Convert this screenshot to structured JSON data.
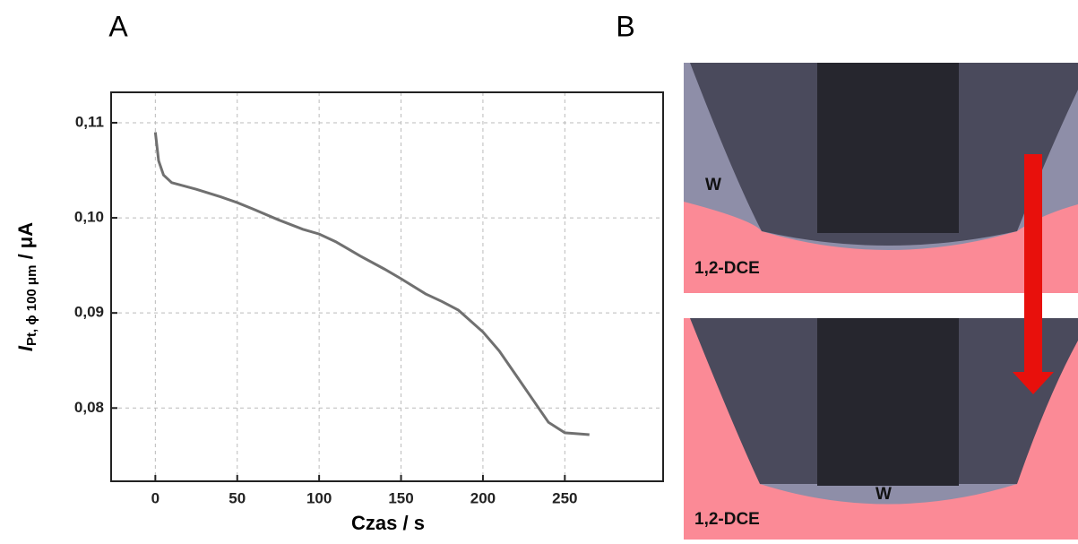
{
  "panels": [
    "A",
    "B"
  ],
  "chart_data": {
    "type": "line",
    "xlabel": "Czas / s",
    "ylabel": "I",
    "ylabel_sub": "Pt, ϕ 100 μm",
    "ylabel_unit": " / μA",
    "x": [
      0,
      2,
      5,
      10,
      25,
      40,
      50,
      60,
      75,
      90,
      100,
      110,
      125,
      140,
      150,
      165,
      175,
      185,
      200,
      210,
      220,
      230,
      240,
      250,
      265
    ],
    "series": [
      {
        "color": "#707070",
        "values": [
          0.109,
          0.106,
          0.1045,
          0.1037,
          0.103,
          0.1022,
          0.1016,
          0.1009,
          0.0998,
          0.0988,
          0.0983,
          0.0975,
          0.096,
          0.0946,
          0.0936,
          0.092,
          0.0912,
          0.0903,
          0.088,
          0.086,
          0.0835,
          0.081,
          0.0785,
          0.0774,
          0.0772
        ]
      }
    ],
    "xlim": [
      -27,
      310
    ],
    "ylim": [
      0.0723,
      0.1132
    ],
    "xticks": [
      0,
      50,
      100,
      150,
      200,
      250
    ],
    "yticks": [
      {
        "value": 0.08,
        "label": "0,08"
      },
      {
        "value": 0.09,
        "label": "0,09"
      },
      {
        "value": 0.1,
        "label": "0,10"
      },
      {
        "value": 0.11,
        "label": "0,11"
      }
    ],
    "grid": true
  },
  "diagram": {
    "labels": [
      "W",
      "1,2-DCE",
      "W",
      "1,2-DCE"
    ]
  }
}
